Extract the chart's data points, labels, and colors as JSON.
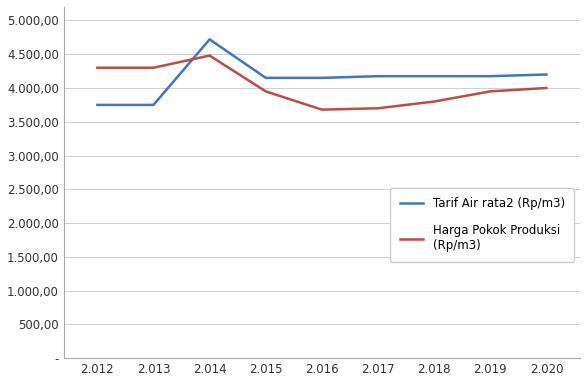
{
  "years": [
    2012,
    2013,
    2014,
    2015,
    2016,
    2017,
    2018,
    2019,
    2020
  ],
  "tarif": [
    3750,
    3750,
    4720,
    4150,
    4150,
    4175,
    4175,
    4175,
    4200
  ],
  "hpp": [
    4300,
    4300,
    4480,
    3950,
    3680,
    3700,
    3800,
    3950,
    4000
  ],
  "tarif_color": "#4472C4",
  "hpp_color": "#BE4B48",
  "tarif_label": "Tarif Air rata2 (Rp/m3)",
  "hpp_label": "Harga Pokok Produksi\n(Rp/m3)",
  "ylim_min": 0,
  "ylim_max": 5000,
  "ytick_step": 500,
  "background_color": "#ffffff",
  "grid_color": "#d0d0d0",
  "axis_color": "#aaaaaa",
  "line_width": 1.8,
  "tick_fontsize": 8.5,
  "legend_fontsize": 8.5
}
